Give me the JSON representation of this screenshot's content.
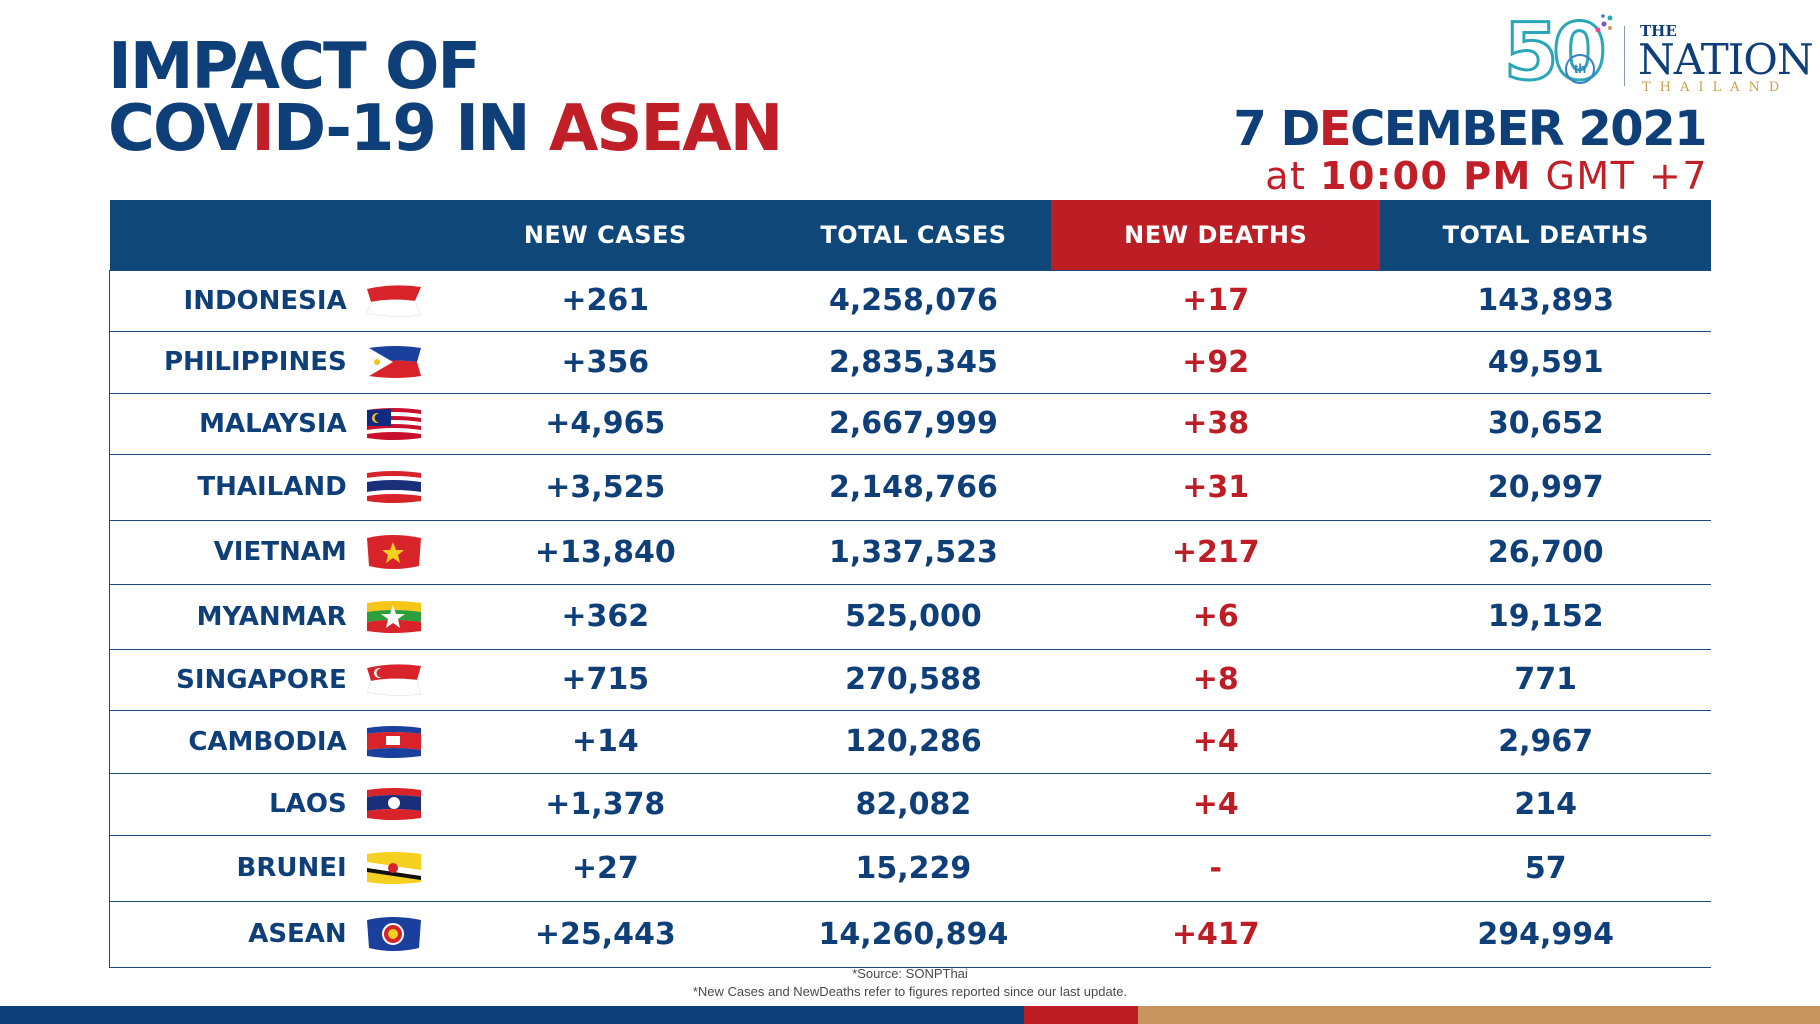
{
  "title": {
    "line1": "IMPACT OF",
    "line2_a": "COV",
    "line2_b": "I",
    "line2_c": "D-19 IN ",
    "line2_d": "ASEAN"
  },
  "logo": {
    "fifty": "50",
    "th": "th",
    "the": "THE",
    "nation": "NATION",
    "thailand": "THAILAND"
  },
  "date": {
    "a": "7 D",
    "b": "E",
    "c": "CEMBER 2021"
  },
  "time": {
    "pre": "at ",
    "bold": "10:00 PM",
    "post": " GMT +7"
  },
  "headers": [
    "",
    "NEW CASES",
    "TOTAL CASES",
    "NEW DEATHS",
    "TOTAL DEATHS"
  ],
  "rows": [
    {
      "country": "INDONESIA",
      "flag": "indonesia-flag-icon",
      "new_cases": "+261",
      "total_cases": "4,258,076",
      "new_deaths": "+17",
      "total_deaths": "143,893"
    },
    {
      "country": "PHILIPPINES",
      "flag": "philippines-flag-icon",
      "new_cases": "+356",
      "total_cases": "2,835,345",
      "new_deaths": "+92",
      "total_deaths": "49,591"
    },
    {
      "country": "MALAYSIA",
      "flag": "malaysia-flag-icon",
      "new_cases": "+4,965",
      "total_cases": "2,667,999",
      "new_deaths": "+38",
      "total_deaths": "30,652"
    },
    {
      "country": "THAILAND",
      "flag": "thailand-flag-icon",
      "new_cases": "+3,525",
      "total_cases": "2,148,766",
      "new_deaths": "+31",
      "total_deaths": "20,997"
    },
    {
      "country": "VIETNAM",
      "flag": "vietnam-flag-icon",
      "new_cases": "+13,840",
      "total_cases": "1,337,523",
      "new_deaths": "+217",
      "total_deaths": "26,700"
    },
    {
      "country": "MYANMAR",
      "flag": "myanmar-flag-icon",
      "new_cases": "+362",
      "total_cases": "525,000",
      "new_deaths": "+6",
      "total_deaths": "19,152"
    },
    {
      "country": "SINGAPORE",
      "flag": "singapore-flag-icon",
      "new_cases": "+715",
      "total_cases": "270,588",
      "new_deaths": "+8",
      "total_deaths": "771"
    },
    {
      "country": "CAMBODIA",
      "flag": "cambodia-flag-icon",
      "new_cases": "+14",
      "total_cases": "120,286",
      "new_deaths": "+4",
      "total_deaths": "2,967"
    },
    {
      "country": "LAOS",
      "flag": "laos-flag-icon",
      "new_cases": "+1,378",
      "total_cases": "82,082",
      "new_deaths": "+4",
      "total_deaths": "214"
    },
    {
      "country": "BRUNEI",
      "flag": "brunei-flag-icon",
      "new_cases": "+27",
      "total_cases": "15,229",
      "new_deaths": "-",
      "total_deaths": "57"
    },
    {
      "country": "ASEAN",
      "flag": "asean-flag-icon",
      "new_cases": "+25,443",
      "total_cases": "14,260,894",
      "new_deaths": "+417",
      "total_deaths": "294,994"
    }
  ],
  "source": "*Source: SONPThai",
  "note": "*New Cases and NewDeaths refer to figures reported since our last update.",
  "colors": {
    "navy": "#0f3f78",
    "red": "#bd1e26",
    "gold": "#c9955e",
    "teal": "#2aa6b8"
  }
}
